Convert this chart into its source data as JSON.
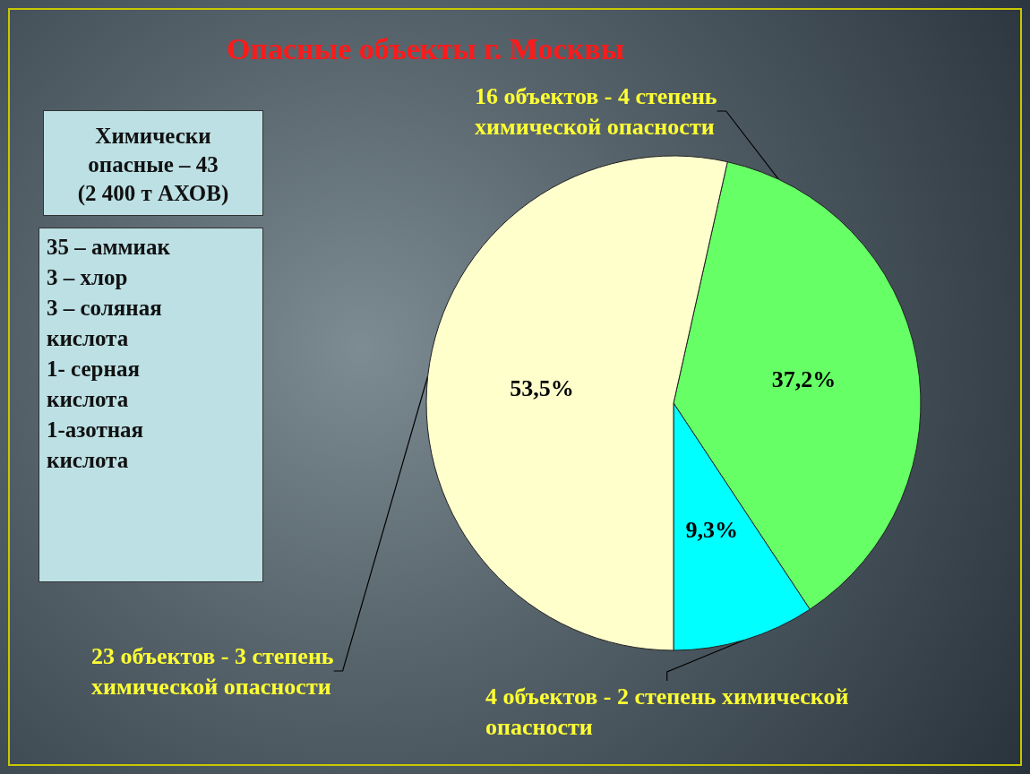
{
  "chart_data": {
    "type": "pie",
    "title": "Опасные объекты г. Москвы",
    "categories": [
      "16 объектов - 4 степень химической опасности",
      "4 объектов - 2 степень химической опасности",
      "23 объектов - 3 степень химической опасности"
    ],
    "values": [
      37.2,
      9.3,
      53.5
    ],
    "value_labels": [
      "37,2%",
      "9,3%",
      "53,5%"
    ],
    "colors": [
      "#66ff66",
      "#00ffff",
      "#ffffcc"
    ],
    "annotations": [
      "Химически\nопасные – 43\n(2 400 т АХОВ)",
      "35 – аммиак\n3 – хлор\n3 – соляная\nкислота\n1- серная\nкислота\n1-азотная\nкислота"
    ]
  }
}
